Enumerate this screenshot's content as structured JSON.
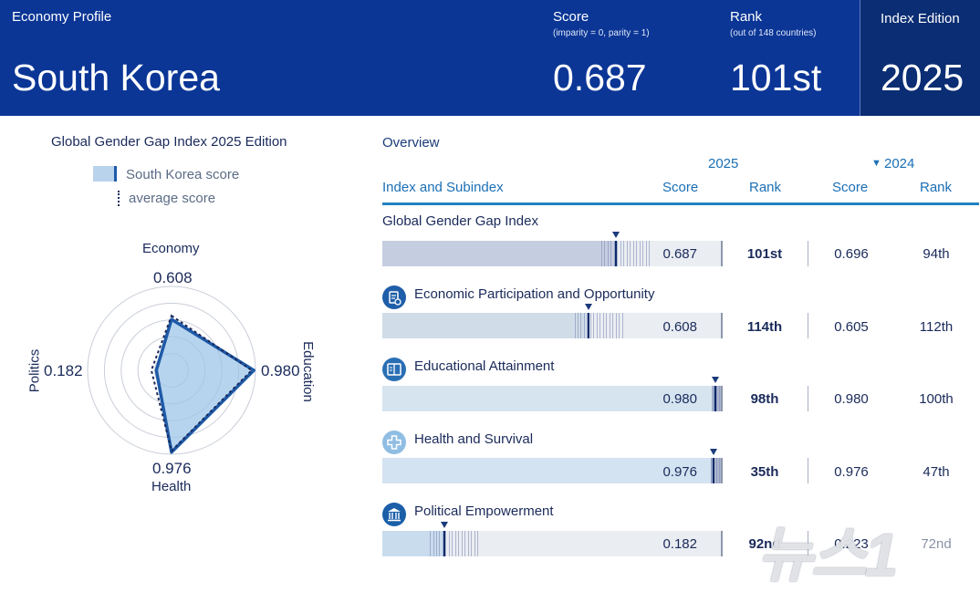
{
  "header": {
    "profile_label": "Economy Profile",
    "country": "South Korea",
    "score_label": "Score",
    "score_note": "(imparity = 0, parity = 1)",
    "score_value": "0.687",
    "rank_label": "Rank",
    "rank_note": "(out of 148 countries)",
    "rank_value": "101st",
    "edition_label": "Index Edition",
    "edition_value": "2025"
  },
  "radar": {
    "title": "Global Gender Gap Index 2025 Edition",
    "legend_score": "South Korea score",
    "legend_avg": "average score",
    "axes": [
      {
        "name": "Economy",
        "value": "0.608",
        "score": 0.608,
        "avg": 0.65
      },
      {
        "name": "Education",
        "value": "0.980",
        "score": 0.98,
        "avg": 0.955
      },
      {
        "name": "Health",
        "value": "0.976",
        "score": 0.976,
        "avg": 0.96
      },
      {
        "name": "Politics",
        "value": "0.182",
        "score": 0.182,
        "avg": 0.24
      }
    ],
    "colors": {
      "fill": "#9ec6e8",
      "stroke": "#1e5aa8",
      "avg": "#1a2a5a",
      "grid": "#c9ced8"
    }
  },
  "overview": {
    "title": "Overview",
    "year_current": "2025",
    "year_prev": "2024",
    "prev_arrow": "▼",
    "columns": {
      "name": "Index and Subindex",
      "score": "Score",
      "rank": "Rank",
      "score_prev": "Score",
      "rank_prev": "Rank"
    },
    "rows": [
      {
        "name": "Global Gender Gap Index",
        "icon": "",
        "score": "0.687",
        "score_num": 0.687,
        "rank": "101st",
        "score_prev": "0.696",
        "rank_prev": "94th"
      },
      {
        "name": "Economic Participation and Opportunity",
        "icon": "economy-icon",
        "score": "0.608",
        "score_num": 0.608,
        "rank": "114th",
        "score_prev": "0.605",
        "rank_prev": "112th"
      },
      {
        "name": "Educational Attainment",
        "icon": "education-book-icon",
        "score": "0.980",
        "score_num": 0.98,
        "rank": "98th",
        "score_prev": "0.980",
        "rank_prev": "100th"
      },
      {
        "name": "Health and Survival",
        "icon": "health-cross-icon",
        "score": "0.976",
        "score_num": 0.976,
        "rank": "35th",
        "score_prev": "0.976",
        "rank_prev": "47th"
      },
      {
        "name": "Political Empowerment",
        "icon": "politics-building-icon",
        "score": "0.182",
        "score_num": 0.182,
        "rank": "92nd",
        "score_prev": "0.223",
        "rank_prev": "72nd"
      }
    ]
  },
  "watermark": {
    "text": "뉴스1"
  },
  "colors": {
    "header": "#0b3696",
    "header_dark": "#0a2d73",
    "accent": "#2283c3",
    "icon": "#1f5ea8"
  }
}
